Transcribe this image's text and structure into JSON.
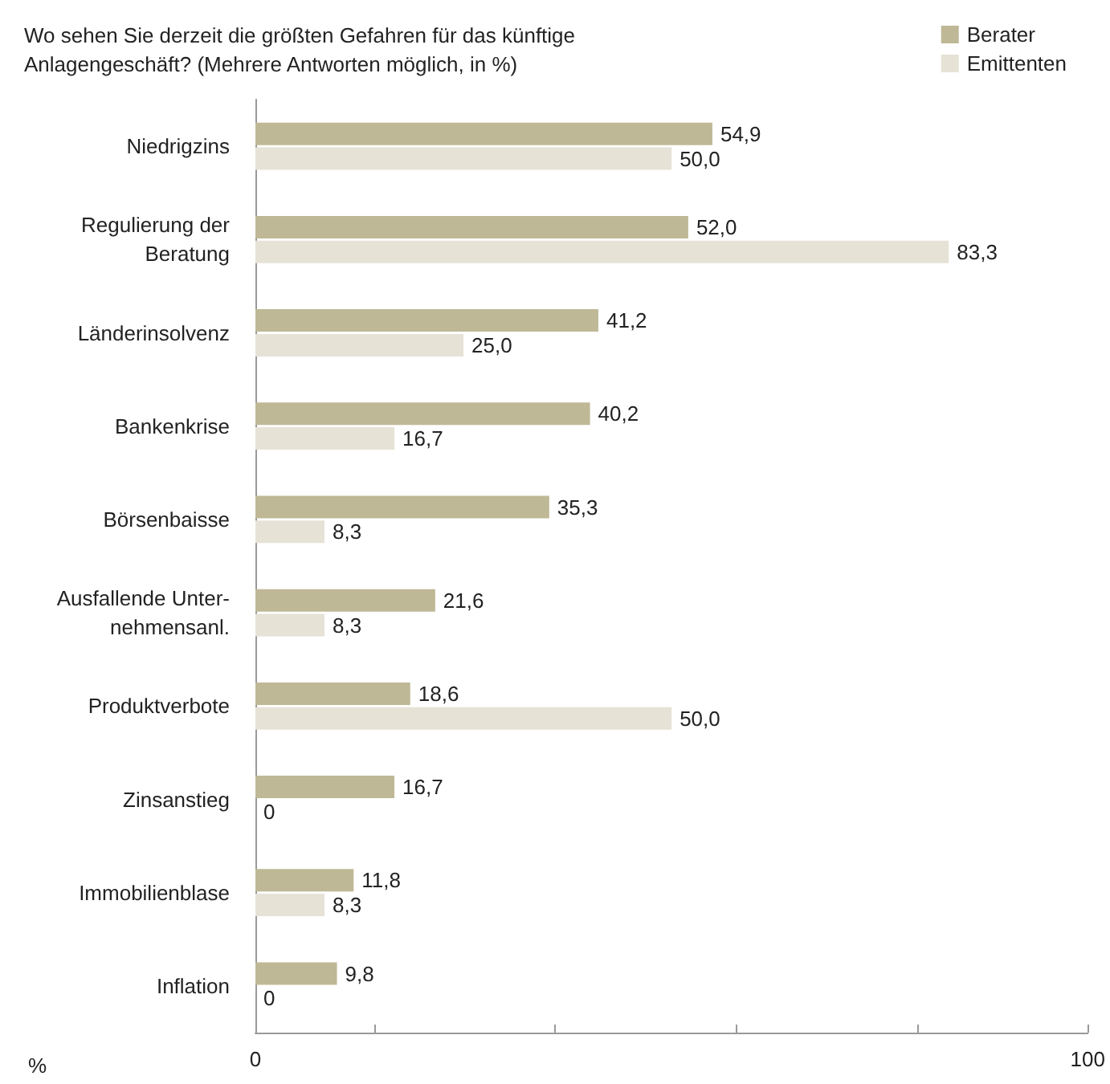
{
  "chart_data": {
    "type": "bar",
    "orientation": "horizontal",
    "title": "Wo sehen Sie derzeit die größten Gefahren für das künftige\nAnlagengeschäft? (Mehrere Antworten möglich, in %)",
    "xlabel": "%",
    "categories": [
      "Niedrigzins",
      "Regulierung der\nBeratung",
      "Länderinsolvenz",
      "Bankenkrise",
      "Börsenbaisse",
      "Ausfallende Unter-\nnehmensanl.",
      "Produktverbote",
      "Zinsanstieg",
      "Immobilienblase",
      "Inflation"
    ],
    "series": [
      {
        "name": "Berater",
        "color": "#bfb896",
        "values": [
          54.9,
          52.0,
          41.2,
          40.2,
          35.3,
          21.6,
          18.6,
          16.7,
          11.8,
          9.8
        ],
        "value_labels": [
          "54,9",
          "52,0",
          "41,2",
          "40,2",
          "35,3",
          "21,6",
          "18,6",
          "16,7",
          "11,8",
          "9,8"
        ]
      },
      {
        "name": "Emittenten",
        "color": "#e6e2d6",
        "values": [
          50.0,
          83.3,
          25.0,
          16.7,
          8.3,
          8.3,
          50.0,
          0,
          8.3,
          0
        ],
        "value_labels": [
          "50,0",
          "83,3",
          "25,0",
          "16,7",
          "8,3",
          "8,3",
          "50,0",
          "0",
          "8,3",
          "0"
        ]
      }
    ],
    "xlim": [
      0,
      100
    ],
    "xticks": [
      0,
      {
        "value": 14.3,
        "label": null
      },
      {
        "value": 36,
        "label": null
      },
      {
        "value": 57.8,
        "label": null
      },
      {
        "value": 79.6,
        "label": null
      },
      100
    ],
    "grid": false,
    "legend": "top right"
  }
}
